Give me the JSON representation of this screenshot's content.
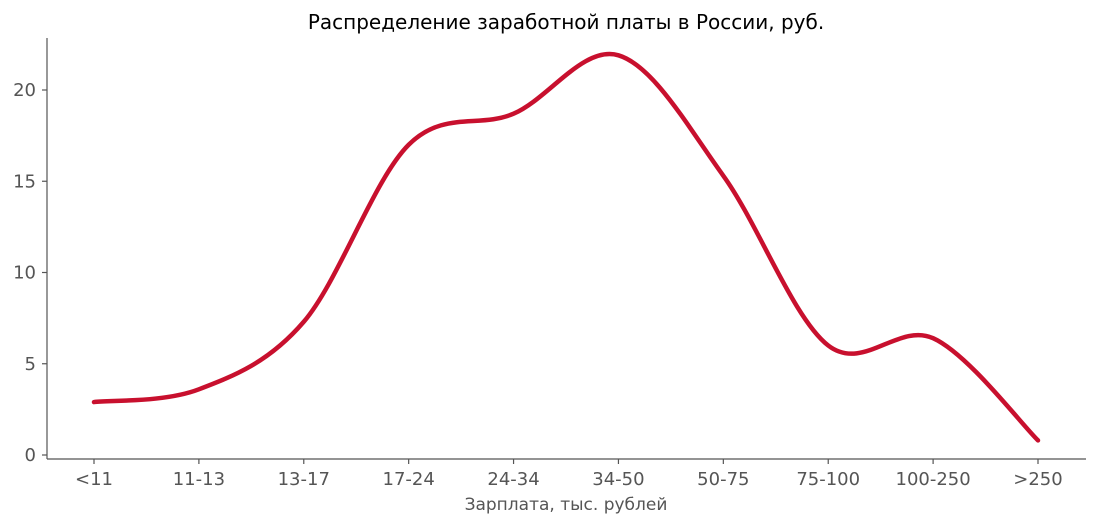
{
  "chart_data": {
    "type": "line",
    "title": "Распределение заработной платы в России, руб.",
    "xlabel": "Зарплата, тыс. рублей",
    "ylabel": "",
    "categories": [
      "<11",
      "11-13",
      "13-17",
      "17-24",
      "24-34",
      "34-50",
      "50-75",
      "75-100",
      "100-250",
      ">250"
    ],
    "values": [
      2.9,
      3.6,
      7.3,
      17.0,
      18.7,
      21.9,
      15.3,
      6.0,
      6.4,
      0.8
    ],
    "ylim": [
      0,
      23
    ],
    "yticks": [
      "0",
      "5",
      "10",
      "15",
      "20"
    ],
    "smooth": true,
    "grid": false,
    "legend": "none",
    "line_color": "#c8102e",
    "axis_color": "#555555"
  }
}
